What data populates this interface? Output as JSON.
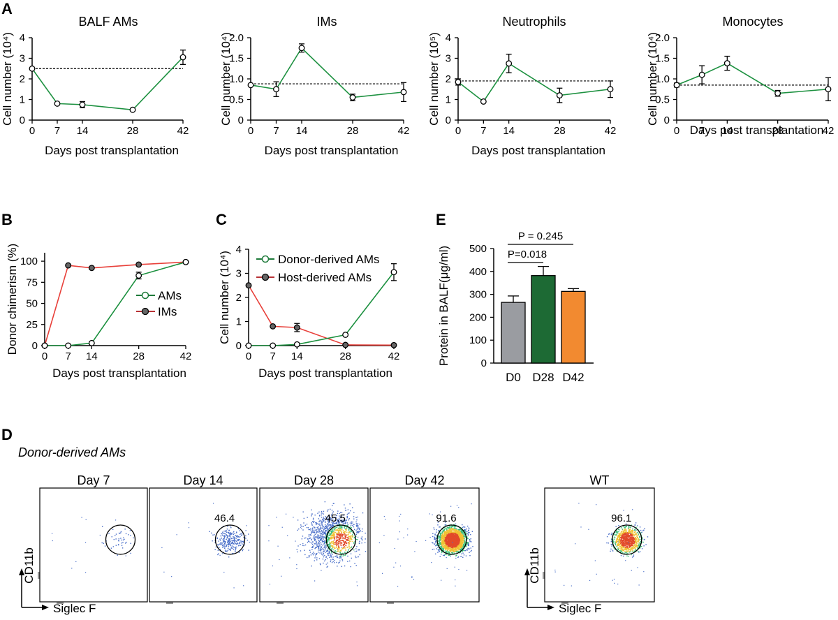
{
  "colors": {
    "green": "#1d9140",
    "red": "#e8403a",
    "grey": "#9a9ca1",
    "darkgreen": "#1d6a34",
    "orange": "#f28a30",
    "legend_green": "#1d7a3a",
    "legend_red": "#b83236"
  },
  "panel_labels": {
    "A": "A",
    "B": "B",
    "C": "C",
    "D": "D",
    "E": "E"
  },
  "chart_data": [
    {
      "id": "A1",
      "type": "line",
      "title": "BALF AMs",
      "ylabel": "Cell number (10⁴)",
      "xlabel": "Days post transplantation",
      "x": [
        0,
        7,
        14,
        28,
        42
      ],
      "values": [
        2.5,
        0.8,
        0.75,
        0.5,
        3.05
      ],
      "errors": [
        0,
        0,
        0.15,
        0,
        0.35
      ],
      "baseline": 2.5,
      "ylim": [
        0,
        4
      ],
      "yticks": [
        "0",
        "1",
        "2",
        "3",
        "4"
      ],
      "xticks": [
        "0",
        "7",
        "14",
        "28",
        "42"
      ]
    },
    {
      "id": "A2",
      "type": "line",
      "title": "IMs",
      "ylabel": "Cell number (10⁴)",
      "xlabel": "Days post transplantation",
      "x": [
        0,
        7,
        14,
        28,
        42
      ],
      "values": [
        0.85,
        0.75,
        1.75,
        0.55,
        0.68
      ],
      "errors": [
        0,
        0.18,
        0.1,
        0.08,
        0.23
      ],
      "baseline": 0.88,
      "ylim": [
        0,
        2
      ],
      "yticks": [
        "0",
        "0.5",
        "1.0",
        "1.5",
        "2.0"
      ],
      "xticks": [
        "0",
        "7",
        "14",
        "28",
        "42"
      ]
    },
    {
      "id": "A3",
      "type": "line",
      "title": "Neutrophils",
      "ylabel": "Cell number (10⁵)",
      "xlabel": "Days post transplantation",
      "x": [
        0,
        7,
        14,
        28,
        42
      ],
      "values": [
        1.85,
        0.9,
        2.75,
        1.2,
        1.5
      ],
      "errors": [
        0.15,
        0,
        0.45,
        0.35,
        0.4
      ],
      "baseline": 1.9,
      "ylim": [
        0,
        4
      ],
      "yticks": [
        "0",
        "1",
        "2",
        "3",
        "4"
      ],
      "xticks": [
        "0",
        "7",
        "14",
        "28",
        "42"
      ]
    },
    {
      "id": "A4",
      "type": "line",
      "title": "Monocytes",
      "ylabel": "Cell number (10⁴)",
      "xlabel": "Days post transplantation",
      "x": [
        0,
        7,
        14,
        28,
        42
      ],
      "values": [
        0.85,
        1.1,
        1.38,
        0.65,
        0.75
      ],
      "errors": [
        0.05,
        0.22,
        0.17,
        0.07,
        0.28
      ],
      "baseline": 0.85,
      "ylim": [
        0,
        2
      ],
      "yticks": [
        "0",
        "0.5",
        "1.0",
        "1.5",
        "2.0"
      ],
      "xticks": [
        "0",
        "7",
        "14",
        "28",
        "42"
      ]
    },
    {
      "id": "B",
      "type": "line",
      "title": "",
      "ylabel": "Donor chimerism (%)",
      "xlabel": "Days post transplantation",
      "x": [
        0,
        7,
        14,
        28,
        42
      ],
      "ylim": [
        0,
        110
      ],
      "yticks": [
        "0",
        "25",
        "50",
        "75",
        "100"
      ],
      "xticks": [
        "0",
        "7",
        "14",
        "28",
        "42"
      ],
      "series": [
        {
          "name": "AMs",
          "values": [
            0,
            0,
            3,
            83,
            99
          ],
          "errors": [
            0,
            0,
            0,
            4,
            1
          ]
        },
        {
          "name": "IMs",
          "values": [
            0,
            95,
            92,
            96,
            99
          ],
          "errors": [
            0,
            0,
            0,
            0,
            0
          ]
        }
      ]
    },
    {
      "id": "C",
      "type": "line",
      "title": "",
      "ylabel": "Cell number (10⁴)",
      "xlabel": "Days post transplantation",
      "x": [
        0,
        7,
        14,
        28,
        42
      ],
      "ylim": [
        0,
        4
      ],
      "yticks": [
        "0",
        "1",
        "2",
        "3",
        "4"
      ],
      "xticks": [
        "0",
        "7",
        "14",
        "28",
        "42"
      ],
      "series": [
        {
          "name": "Donor-derived AMs",
          "values": [
            0,
            0,
            0.05,
            0.45,
            3.05
          ],
          "errors": [
            0,
            0,
            0,
            0,
            0.35
          ]
        },
        {
          "name": "Host-derived AMs",
          "values": [
            2.5,
            0.8,
            0.75,
            0.03,
            0.02
          ],
          "errors": [
            0,
            0,
            0.17,
            0,
            0
          ]
        }
      ]
    },
    {
      "id": "E",
      "type": "bar",
      "ylabel": "Protein in BALF(μg/ml)",
      "categories": [
        "D0",
        "D28",
        "D42"
      ],
      "values": [
        265,
        382,
        313
      ],
      "errors": [
        28,
        40,
        12
      ],
      "ylim": [
        0,
        500
      ],
      "yticks": [
        "0",
        "100",
        "200",
        "300",
        "400",
        "500"
      ],
      "annotations": [
        "P = 0.245",
        "P=0.018"
      ]
    }
  ],
  "flow": {
    "title": "Donor-derived AMs",
    "xlabel": "Siglec F",
    "ylabel": "CD11b",
    "plots": [
      {
        "label": "Day 7",
        "value": "",
        "density": 0.02
      },
      {
        "label": "Day 14",
        "value": "46.4",
        "density": 0.12
      },
      {
        "label": "Day 28",
        "value": "45.5",
        "density": 0.55
      },
      {
        "label": "Day 42",
        "value": "91.6",
        "density": 1.0
      },
      {
        "label": "WT",
        "value": "96.1",
        "density": 0.45
      }
    ]
  }
}
